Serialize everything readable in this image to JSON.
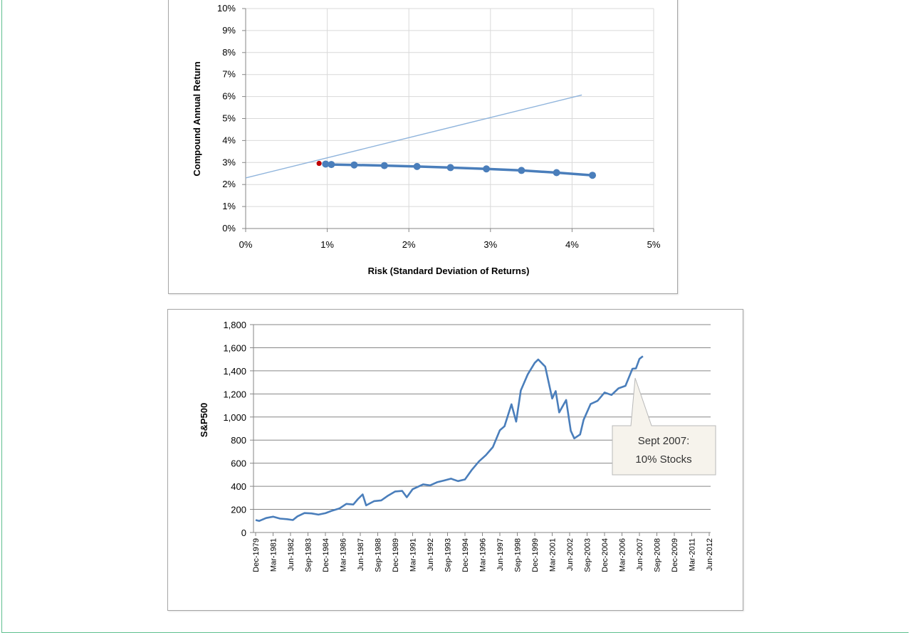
{
  "colors": {
    "frame": "#5fbf8f",
    "series": "#4a7ebb",
    "trend": "#8fb4dc",
    "highlight": "#c00000",
    "grid": "#d9d9d9",
    "callout_fill": "#f6f3ec"
  },
  "chart_data": [
    {
      "type": "line",
      "xlabel": "Risk (Standard Deviation of Returns)",
      "ylabel": "Compound Annual Return",
      "xlim": [
        0,
        5
      ],
      "ylim": [
        0,
        10
      ],
      "x_ticks": [
        0,
        1,
        2,
        3,
        4,
        5
      ],
      "x_tick_labels": [
        "0%",
        "1%",
        "2%",
        "3%",
        "4%",
        "5%"
      ],
      "y_ticks": [
        0,
        1,
        2,
        3,
        4,
        5,
        6,
        7,
        8,
        9,
        10
      ],
      "y_tick_labels": [
        "0%",
        "1%",
        "2%",
        "3%",
        "4%",
        "5%",
        "6%",
        "7%",
        "8%",
        "9%",
        "10%"
      ],
      "grid": true,
      "series": [
        {
          "style": "line-markers",
          "x": [
            0.98,
            1.05,
            1.33,
            1.7,
            2.1,
            2.51,
            2.95,
            3.38,
            3.81,
            4.25
          ],
          "y": [
            2.93,
            2.91,
            2.89,
            2.86,
            2.82,
            2.77,
            2.71,
            2.64,
            2.54,
            2.42
          ]
        },
        {
          "style": "line",
          "x": [
            0,
            4.12
          ],
          "y": [
            2.3,
            6.07
          ]
        },
        {
          "style": "point",
          "x": [
            0.9
          ],
          "y": [
            2.96
          ]
        }
      ]
    },
    {
      "type": "line",
      "ylabel": "S&P500",
      "ylim": [
        0,
        1800
      ],
      "y_ticks": [
        0,
        200,
        400,
        600,
        800,
        1000,
        1200,
        1400,
        1600,
        1800
      ],
      "y_tick_labels": [
        "0",
        "200",
        "400",
        "600",
        "800",
        "1,000",
        "1,200",
        "1,400",
        "1,600",
        "1,800"
      ],
      "x_tick_labels": [
        "Dec-1979",
        "Mar-1981",
        "Jun-1982",
        "Sep-1983",
        "Dec-1984",
        "Mar-1986",
        "Jun-1987",
        "Sep-1988",
        "Dec-1989",
        "Mar-1991",
        "Jun-1992",
        "Sep-1993",
        "Dec-1994",
        "Mar-1996",
        "Jun-1997",
        "Sep-1998",
        "Dec-1999",
        "Mar-2001",
        "Jun-2002",
        "Sep-2003",
        "Dec-2004",
        "Mar-2006",
        "Jun-2007",
        "Sep-2008",
        "Dec-2009",
        "Mar-2011",
        "Jun-2012"
      ],
      "grid": true,
      "series": [
        {
          "x": [
            "1979-12",
            "1980-03",
            "1980-09",
            "1981-03",
            "1981-09",
            "1982-03",
            "1982-08",
            "1982-12",
            "1983-06",
            "1983-12",
            "1984-06",
            "1984-12",
            "1985-06",
            "1985-12",
            "1986-06",
            "1986-12",
            "1987-04",
            "1987-08",
            "1987-11",
            "1988-06",
            "1988-12",
            "1989-06",
            "1989-12",
            "1990-06",
            "1990-10",
            "1991-03",
            "1991-12",
            "1992-06",
            "1992-12",
            "1993-06",
            "1993-12",
            "1994-06",
            "1994-12",
            "1995-06",
            "1995-12",
            "1996-06",
            "1996-12",
            "1997-06",
            "1997-10",
            "1998-04",
            "1998-08",
            "1998-12",
            "1999-06",
            "1999-12",
            "2000-03",
            "2000-09",
            "2001-03",
            "2001-06",
            "2001-09",
            "2002-03",
            "2002-07",
            "2002-10",
            "2003-03",
            "2003-06",
            "2003-12",
            "2004-06",
            "2004-12",
            "2005-06",
            "2005-12",
            "2006-06",
            "2006-12",
            "2007-03",
            "2007-06",
            "2007-09"
          ],
          "y": [
            108,
            100,
            125,
            137,
            120,
            115,
            108,
            140,
            168,
            165,
            155,
            167,
            190,
            208,
            248,
            242,
            290,
            330,
            235,
            272,
            278,
            320,
            355,
            360,
            305,
            375,
            417,
            408,
            435,
            450,
            466,
            445,
            459,
            544,
            615,
            670,
            740,
            885,
            920,
            1110,
            960,
            1230,
            1370,
            1469,
            1498,
            1436,
            1160,
            1224,
            1040,
            1147,
            880,
            815,
            849,
            975,
            1112,
            1140,
            1212,
            1191,
            1248,
            1270,
            1418,
            1420,
            1503,
            1526
          ]
        }
      ],
      "annotations": [
        {
          "line1": "Sept 2007:",
          "line2": "10% Stocks"
        }
      ]
    }
  ]
}
